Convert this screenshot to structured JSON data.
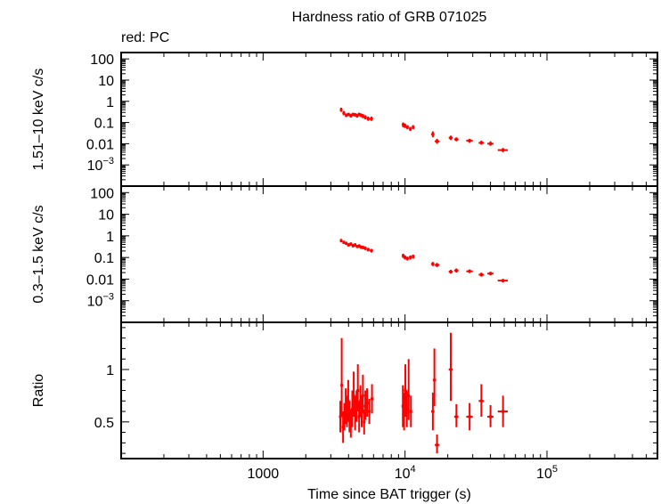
{
  "chart_data": {
    "type": "scatter",
    "title": "Hardness ratio of GRB 071025",
    "subtitle": "red: PC",
    "xlabel": "Time since BAT trigger (s)",
    "xscale": "log",
    "xlim": [
      100,
      600000
    ],
    "x_ticks": [
      {
        "value": 1000,
        "base": "1000",
        "exp": ""
      },
      {
        "value": 10000,
        "base": "10",
        "exp": "4"
      },
      {
        "value": 100000,
        "base": "10",
        "exp": "5"
      }
    ],
    "colors": {
      "series": "#ff0000",
      "axes": "#000000"
    },
    "panels": [
      {
        "id": "hard",
        "ylabel": "1.51–10 keV c/s",
        "yscale": "log",
        "ylim": [
          0.0001,
          200
        ],
        "y_ticks": [
          {
            "value": 100,
            "base": "100",
            "exp": ""
          },
          {
            "value": 10,
            "base": "10",
            "exp": ""
          },
          {
            "value": 1,
            "base": "1",
            "exp": ""
          },
          {
            "value": 0.1,
            "base": "0.1",
            "exp": ""
          },
          {
            "value": 0.01,
            "base": "0.01",
            "exp": ""
          },
          {
            "value": 0.001,
            "base": "10",
            "exp": "−3"
          }
        ],
        "points": [
          {
            "x": 3550,
            "xlo": 3480,
            "xhi": 3620,
            "y": 0.4,
            "ylo": 0.32,
            "yhi": 0.5
          },
          {
            "x": 3700,
            "xlo": 3630,
            "xhi": 3770,
            "y": 0.28,
            "ylo": 0.22,
            "yhi": 0.35
          },
          {
            "x": 3850,
            "xlo": 3780,
            "xhi": 3920,
            "y": 0.22,
            "ylo": 0.18,
            "yhi": 0.27
          },
          {
            "x": 4000,
            "xlo": 3930,
            "xhi": 4070,
            "y": 0.24,
            "ylo": 0.2,
            "yhi": 0.29
          },
          {
            "x": 4150,
            "xlo": 4080,
            "xhi": 4220,
            "y": 0.21,
            "ylo": 0.17,
            "yhi": 0.26
          },
          {
            "x": 4300,
            "xlo": 4230,
            "xhi": 4370,
            "y": 0.24,
            "ylo": 0.2,
            "yhi": 0.29
          },
          {
            "x": 4450,
            "xlo": 4380,
            "xhi": 4520,
            "y": 0.23,
            "ylo": 0.19,
            "yhi": 0.28
          },
          {
            "x": 4600,
            "xlo": 4530,
            "xhi": 4670,
            "y": 0.21,
            "ylo": 0.17,
            "yhi": 0.26
          },
          {
            "x": 4750,
            "xlo": 4680,
            "xhi": 4820,
            "y": 0.24,
            "ylo": 0.2,
            "yhi": 0.29
          },
          {
            "x": 4900,
            "xlo": 4830,
            "xhi": 4970,
            "y": 0.22,
            "ylo": 0.18,
            "yhi": 0.27
          },
          {
            "x": 5050,
            "xlo": 4980,
            "xhi": 5120,
            "y": 0.2,
            "ylo": 0.16,
            "yhi": 0.25
          },
          {
            "x": 5250,
            "xlo": 5150,
            "xhi": 5350,
            "y": 0.18,
            "ylo": 0.14,
            "yhi": 0.22
          },
          {
            "x": 5500,
            "xlo": 5380,
            "xhi": 5620,
            "y": 0.15,
            "ylo": 0.12,
            "yhi": 0.19
          },
          {
            "x": 5800,
            "xlo": 5650,
            "xhi": 5950,
            "y": 0.15,
            "ylo": 0.12,
            "yhi": 0.19
          },
          {
            "x": 9700,
            "xlo": 9550,
            "xhi": 9850,
            "y": 0.08,
            "ylo": 0.06,
            "yhi": 0.1
          },
          {
            "x": 10000,
            "xlo": 9860,
            "xhi": 10150,
            "y": 0.07,
            "ylo": 0.055,
            "yhi": 0.09
          },
          {
            "x": 10400,
            "xlo": 10250,
            "xhi": 10550,
            "y": 0.06,
            "ylo": 0.048,
            "yhi": 0.075
          },
          {
            "x": 10900,
            "xlo": 10700,
            "xhi": 11100,
            "y": 0.05,
            "ylo": 0.04,
            "yhi": 0.062
          },
          {
            "x": 11400,
            "xlo": 11200,
            "xhi": 11650,
            "y": 0.06,
            "ylo": 0.048,
            "yhi": 0.075
          },
          {
            "x": 15700,
            "xlo": 15300,
            "xhi": 16100,
            "y": 0.028,
            "ylo": 0.02,
            "yhi": 0.038
          },
          {
            "x": 16800,
            "xlo": 16200,
            "xhi": 17500,
            "y": 0.013,
            "ylo": 0.01,
            "yhi": 0.017
          },
          {
            "x": 21000,
            "xlo": 20300,
            "xhi": 21700,
            "y": 0.019,
            "ylo": 0.015,
            "yhi": 0.024
          },
          {
            "x": 23000,
            "xlo": 22200,
            "xhi": 23800,
            "y": 0.016,
            "ylo": 0.013,
            "yhi": 0.02
          },
          {
            "x": 28500,
            "xlo": 27000,
            "xhi": 30000,
            "y": 0.014,
            "ylo": 0.011,
            "yhi": 0.017
          },
          {
            "x": 34500,
            "xlo": 33000,
            "xhi": 36000,
            "y": 0.011,
            "ylo": 0.009,
            "yhi": 0.014
          },
          {
            "x": 40000,
            "xlo": 38000,
            "xhi": 42000,
            "y": 0.01,
            "ylo": 0.008,
            "yhi": 0.013
          },
          {
            "x": 49000,
            "xlo": 45000,
            "xhi": 53000,
            "y": 0.005,
            "ylo": 0.004,
            "yhi": 0.0063
          }
        ]
      },
      {
        "id": "soft",
        "ylabel": "0.3–1.5 keV c/s",
        "yscale": "log",
        "ylim": [
          0.0001,
          200
        ],
        "y_ticks": [
          {
            "value": 100,
            "base": "100",
            "exp": ""
          },
          {
            "value": 10,
            "base": "10",
            "exp": ""
          },
          {
            "value": 1,
            "base": "1",
            "exp": ""
          },
          {
            "value": 0.1,
            "base": "0.1",
            "exp": ""
          },
          {
            "value": 0.01,
            "base": "0.01",
            "exp": ""
          },
          {
            "value": 0.001,
            "base": "10",
            "exp": "−3"
          }
        ],
        "points": [
          {
            "x": 3550,
            "xlo": 3480,
            "xhi": 3620,
            "y": 0.6,
            "ylo": 0.5,
            "yhi": 0.72
          },
          {
            "x": 3700,
            "xlo": 3630,
            "xhi": 3770,
            "y": 0.5,
            "ylo": 0.42,
            "yhi": 0.6
          },
          {
            "x": 3850,
            "xlo": 3780,
            "xhi": 3920,
            "y": 0.45,
            "ylo": 0.38,
            "yhi": 0.54
          },
          {
            "x": 4000,
            "xlo": 3930,
            "xhi": 4070,
            "y": 0.38,
            "ylo": 0.32,
            "yhi": 0.46
          },
          {
            "x": 4150,
            "xlo": 4080,
            "xhi": 4220,
            "y": 0.42,
            "ylo": 0.35,
            "yhi": 0.5
          },
          {
            "x": 4300,
            "xlo": 4230,
            "xhi": 4370,
            "y": 0.35,
            "ylo": 0.29,
            "yhi": 0.42
          },
          {
            "x": 4450,
            "xlo": 4380,
            "xhi": 4520,
            "y": 0.38,
            "ylo": 0.32,
            "yhi": 0.46
          },
          {
            "x": 4600,
            "xlo": 4530,
            "xhi": 4670,
            "y": 0.32,
            "ylo": 0.27,
            "yhi": 0.38
          },
          {
            "x": 4750,
            "xlo": 4680,
            "xhi": 4820,
            "y": 0.34,
            "ylo": 0.28,
            "yhi": 0.41
          },
          {
            "x": 4900,
            "xlo": 4830,
            "xhi": 4970,
            "y": 0.3,
            "ylo": 0.25,
            "yhi": 0.36
          },
          {
            "x": 5050,
            "xlo": 4980,
            "xhi": 5120,
            "y": 0.29,
            "ylo": 0.24,
            "yhi": 0.35
          },
          {
            "x": 5250,
            "xlo": 5150,
            "xhi": 5350,
            "y": 0.27,
            "ylo": 0.22,
            "yhi": 0.32
          },
          {
            "x": 5500,
            "xlo": 5380,
            "xhi": 5620,
            "y": 0.23,
            "ylo": 0.19,
            "yhi": 0.28
          },
          {
            "x": 5800,
            "xlo": 5650,
            "xhi": 5950,
            "y": 0.21,
            "ylo": 0.17,
            "yhi": 0.25
          },
          {
            "x": 9700,
            "xlo": 9550,
            "xhi": 9850,
            "y": 0.12,
            "ylo": 0.095,
            "yhi": 0.15
          },
          {
            "x": 10000,
            "xlo": 9860,
            "xhi": 10150,
            "y": 0.1,
            "ylo": 0.08,
            "yhi": 0.125
          },
          {
            "x": 10400,
            "xlo": 10250,
            "xhi": 10550,
            "y": 0.09,
            "ylo": 0.072,
            "yhi": 0.11
          },
          {
            "x": 10900,
            "xlo": 10700,
            "xhi": 11100,
            "y": 0.1,
            "ylo": 0.08,
            "yhi": 0.125
          },
          {
            "x": 11400,
            "xlo": 11200,
            "xhi": 11650,
            "y": 0.11,
            "ylo": 0.088,
            "yhi": 0.135
          },
          {
            "x": 15700,
            "xlo": 15300,
            "xhi": 16100,
            "y": 0.05,
            "ylo": 0.04,
            "yhi": 0.062
          },
          {
            "x": 16800,
            "xlo": 16200,
            "xhi": 17500,
            "y": 0.045,
            "ylo": 0.036,
            "yhi": 0.056
          },
          {
            "x": 21000,
            "xlo": 20300,
            "xhi": 21700,
            "y": 0.022,
            "ylo": 0.018,
            "yhi": 0.027
          },
          {
            "x": 23000,
            "xlo": 22200,
            "xhi": 23800,
            "y": 0.025,
            "ylo": 0.02,
            "yhi": 0.031
          },
          {
            "x": 28500,
            "xlo": 27000,
            "xhi": 30000,
            "y": 0.023,
            "ylo": 0.019,
            "yhi": 0.028
          },
          {
            "x": 34500,
            "xlo": 33000,
            "xhi": 36000,
            "y": 0.016,
            "ylo": 0.013,
            "yhi": 0.02
          },
          {
            "x": 40000,
            "xlo": 38000,
            "xhi": 42000,
            "y": 0.018,
            "ylo": 0.015,
            "yhi": 0.022
          },
          {
            "x": 49000,
            "xlo": 45000,
            "xhi": 53000,
            "y": 0.0085,
            "ylo": 0.007,
            "yhi": 0.0103
          }
        ]
      },
      {
        "id": "ratio",
        "ylabel": "Ratio",
        "yscale": "linear",
        "ylim": [
          0.15,
          1.45
        ],
        "y_ticks": [
          {
            "value": 1,
            "base": "1",
            "exp": ""
          },
          {
            "value": 0.5,
            "base": "0.5",
            "exp": ""
          }
        ],
        "points": [
          {
            "x": 3500,
            "xlo": 3460,
            "xhi": 3540,
            "y": 0.55,
            "ylo": 0.4,
            "yhi": 0.7
          },
          {
            "x": 3580,
            "xlo": 3540,
            "xhi": 3620,
            "y": 0.85,
            "ylo": 0.55,
            "yhi": 1.3
          },
          {
            "x": 3660,
            "xlo": 3620,
            "xhi": 3700,
            "y": 0.45,
            "ylo": 0.3,
            "yhi": 0.6
          },
          {
            "x": 3740,
            "xlo": 3700,
            "xhi": 3780,
            "y": 0.55,
            "ylo": 0.42,
            "yhi": 0.68
          },
          {
            "x": 3820,
            "xlo": 3780,
            "xhi": 3860,
            "y": 0.65,
            "ylo": 0.48,
            "yhi": 0.82
          },
          {
            "x": 3900,
            "xlo": 3860,
            "xhi": 3940,
            "y": 0.6,
            "ylo": 0.45,
            "yhi": 0.75
          },
          {
            "x": 3980,
            "xlo": 3940,
            "xhi": 4020,
            "y": 0.7,
            "ylo": 0.5,
            "yhi": 0.9
          },
          {
            "x": 4060,
            "xlo": 4020,
            "xhi": 4100,
            "y": 0.55,
            "ylo": 0.4,
            "yhi": 0.7
          },
          {
            "x": 4150,
            "xlo": 4100,
            "xhi": 4200,
            "y": 0.48,
            "ylo": 0.35,
            "yhi": 0.62
          },
          {
            "x": 4250,
            "xlo": 4200,
            "xhi": 4300,
            "y": 0.62,
            "ylo": 0.45,
            "yhi": 0.8
          },
          {
            "x": 4350,
            "xlo": 4300,
            "xhi": 4400,
            "y": 0.75,
            "ylo": 0.55,
            "yhi": 0.98
          },
          {
            "x": 4450,
            "xlo": 4400,
            "xhi": 4500,
            "y": 0.58,
            "ylo": 0.42,
            "yhi": 0.75
          },
          {
            "x": 4550,
            "xlo": 4500,
            "xhi": 4600,
            "y": 0.65,
            "ylo": 0.5,
            "yhi": 0.8
          },
          {
            "x": 4650,
            "xlo": 4600,
            "xhi": 4700,
            "y": 0.8,
            "ylo": 0.6,
            "yhi": 1.05
          },
          {
            "x": 4750,
            "xlo": 4700,
            "xhi": 4800,
            "y": 0.55,
            "ylo": 0.4,
            "yhi": 0.7
          },
          {
            "x": 4850,
            "xlo": 4800,
            "xhi": 4900,
            "y": 0.7,
            "ylo": 0.55,
            "yhi": 0.85
          },
          {
            "x": 4950,
            "xlo": 4900,
            "xhi": 5000,
            "y": 0.6,
            "ylo": 0.45,
            "yhi": 0.75
          },
          {
            "x": 5050,
            "xlo": 5000,
            "xhi": 5100,
            "y": 0.75,
            "ylo": 0.58,
            "yhi": 0.95
          },
          {
            "x": 5150,
            "xlo": 5100,
            "xhi": 5200,
            "y": 0.5,
            "ylo": 0.38,
            "yhi": 0.62
          },
          {
            "x": 5250,
            "xlo": 5200,
            "xhi": 5300,
            "y": 0.65,
            "ylo": 0.52,
            "yhi": 0.8
          },
          {
            "x": 5400,
            "xlo": 5300,
            "xhi": 5500,
            "y": 0.68,
            "ylo": 0.55,
            "yhi": 0.82
          },
          {
            "x": 5600,
            "xlo": 5500,
            "xhi": 5700,
            "y": 0.6,
            "ylo": 0.48,
            "yhi": 0.72
          },
          {
            "x": 5850,
            "xlo": 5700,
            "xhi": 6000,
            "y": 0.72,
            "ylo": 0.58,
            "yhi": 0.86
          },
          {
            "x": 9650,
            "xlo": 9550,
            "xhi": 9750,
            "y": 0.65,
            "ylo": 0.45,
            "yhi": 0.85
          },
          {
            "x": 9850,
            "xlo": 9750,
            "xhi": 9950,
            "y": 0.6,
            "ylo": 0.42,
            "yhi": 0.78
          },
          {
            "x": 10050,
            "xlo": 9950,
            "xhi": 10150,
            "y": 0.8,
            "ylo": 0.55,
            "yhi": 1.05
          },
          {
            "x": 10300,
            "xlo": 10150,
            "xhi": 10450,
            "y": 0.62,
            "ylo": 0.45,
            "yhi": 0.8
          },
          {
            "x": 10600,
            "xlo": 10450,
            "xhi": 10750,
            "y": 0.75,
            "ylo": 0.52,
            "yhi": 1.1
          },
          {
            "x": 11000,
            "xlo": 10800,
            "xhi": 11200,
            "y": 0.6,
            "ylo": 0.45,
            "yhi": 0.75
          },
          {
            "x": 15700,
            "xlo": 15300,
            "xhi": 16100,
            "y": 0.6,
            "ylo": 0.42,
            "yhi": 0.78
          },
          {
            "x": 16100,
            "xlo": 15700,
            "xhi": 16500,
            "y": 0.9,
            "ylo": 0.65,
            "yhi": 1.2
          },
          {
            "x": 16800,
            "xlo": 16200,
            "xhi": 17500,
            "y": 0.28,
            "ylo": 0.2,
            "yhi": 0.38
          },
          {
            "x": 21000,
            "xlo": 20300,
            "xhi": 21700,
            "y": 1.0,
            "ylo": 0.7,
            "yhi": 1.35
          },
          {
            "x": 23000,
            "xlo": 22200,
            "xhi": 23800,
            "y": 0.55,
            "ylo": 0.45,
            "yhi": 0.67
          },
          {
            "x": 28500,
            "xlo": 27000,
            "xhi": 30000,
            "y": 0.55,
            "ylo": 0.42,
            "yhi": 0.68
          },
          {
            "x": 34500,
            "xlo": 33000,
            "xhi": 36000,
            "y": 0.7,
            "ylo": 0.55,
            "yhi": 0.86
          },
          {
            "x": 40000,
            "xlo": 38000,
            "xhi": 42000,
            "y": 0.55,
            "ylo": 0.45,
            "yhi": 0.66
          },
          {
            "x": 49000,
            "xlo": 45000,
            "xhi": 53000,
            "y": 0.6,
            "ylo": 0.45,
            "yhi": 0.75
          }
        ]
      }
    ]
  }
}
